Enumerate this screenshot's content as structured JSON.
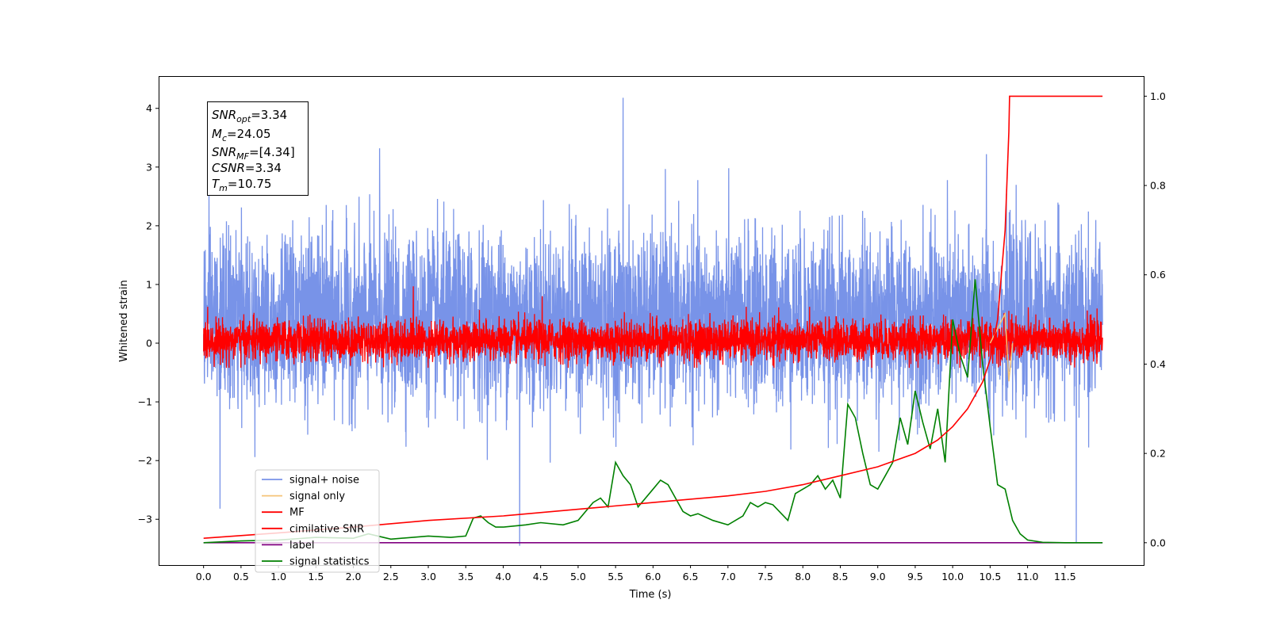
{
  "chart_data": {
    "type": "line",
    "xlabel": "Time (s)",
    "ylabel": "Whitened strain",
    "xlim": [
      -0.6,
      12.55
    ],
    "ylim_left": [
      -3.78,
      4.55
    ],
    "ylim_right": [
      -0.05,
      1.045
    ],
    "x_ticks": [
      "0.0",
      "0.5",
      "1.0",
      "1.5",
      "2.0",
      "2.5",
      "3.0",
      "3.5",
      "4.0",
      "4.5",
      "5.0",
      "5.5",
      "6.0",
      "6.5",
      "7.0",
      "7.5",
      "8.0",
      "8.5",
      "9.0",
      "9.5",
      "10.0",
      "10.5",
      "11.0",
      "11.5"
    ],
    "y_ticks_left": [
      "4",
      "3",
      "2",
      "1",
      "0",
      "−1",
      "−2",
      "−3"
    ],
    "y_ticks_right": [
      "1.0",
      "0.8",
      "0.6",
      "0.4",
      "0.2",
      "0.0"
    ],
    "grid": false,
    "legend_position": "lower-left",
    "annotation": {
      "snr_opt": "=3.34",
      "mc": "=24.05",
      "snr_mf": "=[4.34]",
      "csnr": "=3.34",
      "tm": "=10.75"
    },
    "noise_series": {
      "name": "signal+ noise",
      "color": "#7893e8",
      "x_range": [
        0.0,
        12.0
      ],
      "typical_range": [
        -1.8,
        2.6
      ],
      "extreme_points": [
        {
          "x": 5.6,
          "y": 4.18
        },
        {
          "x": 2.35,
          "y": 3.32
        },
        {
          "x": 10.45,
          "y": 3.22
        },
        {
          "x": 4.22,
          "y": -3.45
        },
        {
          "x": 11.65,
          "y": -3.4
        },
        {
          "x": 0.22,
          "y": -2.82
        }
      ]
    },
    "mf_series": {
      "name": "MF",
      "color": "#ff0000",
      "x_range": [
        0.0,
        12.0
      ],
      "typical_range": [
        -0.4,
        0.6
      ],
      "peaks": [
        {
          "x": 2.8,
          "y": 0.97
        },
        {
          "x": 4.52,
          "y": 0.8
        },
        {
          "x": 10.75,
          "y": 0.55
        }
      ]
    },
    "signal_only": {
      "name": "signal only",
      "color": "#f5c478",
      "points": [
        [
          10.5,
          0.0
        ],
        [
          10.7,
          0.5
        ],
        [
          10.75,
          -0.65
        ],
        [
          10.8,
          0.0
        ]
      ]
    },
    "cumulative_snr": {
      "name": "cimilative SNR",
      "color": "#ff0000",
      "axis": "right",
      "x": [
        0.0,
        1.0,
        2.0,
        3.0,
        4.0,
        5.0,
        6.0,
        7.0,
        7.5,
        8.0,
        8.5,
        9.0,
        9.5,
        9.8,
        10.0,
        10.2,
        10.4,
        10.5,
        10.6,
        10.7,
        10.75,
        10.76,
        11.0,
        12.0
      ],
      "values": [
        0.01,
        0.022,
        0.035,
        0.05,
        0.06,
        0.075,
        0.09,
        0.105,
        0.115,
        0.13,
        0.15,
        0.17,
        0.2,
        0.23,
        0.26,
        0.3,
        0.36,
        0.41,
        0.5,
        0.7,
        0.92,
        1.0,
        1.0,
        1.0
      ]
    },
    "label_series": {
      "name": "label",
      "color": "#800080",
      "axis": "right",
      "x": [
        0.0,
        12.0
      ],
      "values": [
        0.0,
        0.0
      ]
    },
    "signal_statistics": {
      "name": "signal statistics",
      "color": "#008000",
      "axis": "right",
      "x": [
        0.0,
        0.5,
        1.0,
        1.5,
        2.0,
        2.2,
        2.5,
        3.0,
        3.3,
        3.5,
        3.6,
        3.7,
        3.8,
        3.9,
        4.0,
        4.3,
        4.5,
        4.8,
        5.0,
        5.2,
        5.3,
        5.4,
        5.5,
        5.6,
        5.7,
        5.8,
        6.0,
        6.1,
        6.2,
        6.4,
        6.5,
        6.6,
        6.8,
        7.0,
        7.2,
        7.3,
        7.4,
        7.5,
        7.6,
        7.8,
        7.9,
        8.0,
        8.1,
        8.2,
        8.3,
        8.4,
        8.5,
        8.6,
        8.7,
        8.8,
        8.9,
        9.0,
        9.1,
        9.2,
        9.3,
        9.4,
        9.5,
        9.6,
        9.7,
        9.8,
        9.9,
        10.0,
        10.1,
        10.2,
        10.3,
        10.4,
        10.5,
        10.6,
        10.7,
        10.8,
        10.9,
        11.0,
        11.2,
        11.5,
        12.0
      ],
      "values": [
        0.0,
        0.004,
        0.006,
        0.012,
        0.01,
        0.02,
        0.008,
        0.015,
        0.012,
        0.015,
        0.055,
        0.06,
        0.045,
        0.035,
        0.035,
        0.04,
        0.045,
        0.04,
        0.05,
        0.09,
        0.1,
        0.08,
        0.18,
        0.15,
        0.13,
        0.08,
        0.12,
        0.14,
        0.13,
        0.07,
        0.06,
        0.065,
        0.05,
        0.04,
        0.06,
        0.09,
        0.08,
        0.09,
        0.085,
        0.05,
        0.11,
        0.12,
        0.13,
        0.15,
        0.12,
        0.14,
        0.1,
        0.31,
        0.28,
        0.2,
        0.13,
        0.12,
        0.15,
        0.18,
        0.28,
        0.22,
        0.34,
        0.27,
        0.21,
        0.3,
        0.18,
        0.5,
        0.42,
        0.37,
        0.59,
        0.4,
        0.26,
        0.13,
        0.12,
        0.05,
        0.02,
        0.006,
        0.001,
        0.0,
        0.0
      ]
    },
    "legend_entries": [
      {
        "label": "signal+ noise",
        "color": "#7893e8"
      },
      {
        "label": "signal only",
        "color": "#f5c478"
      },
      {
        "label": "MF",
        "color": "#ff0000"
      },
      {
        "label": "cimilative SNR",
        "color": "#ff0000"
      },
      {
        "label": "label",
        "color": "#800080"
      },
      {
        "label": "signal statistics",
        "color": "#008000"
      }
    ]
  }
}
